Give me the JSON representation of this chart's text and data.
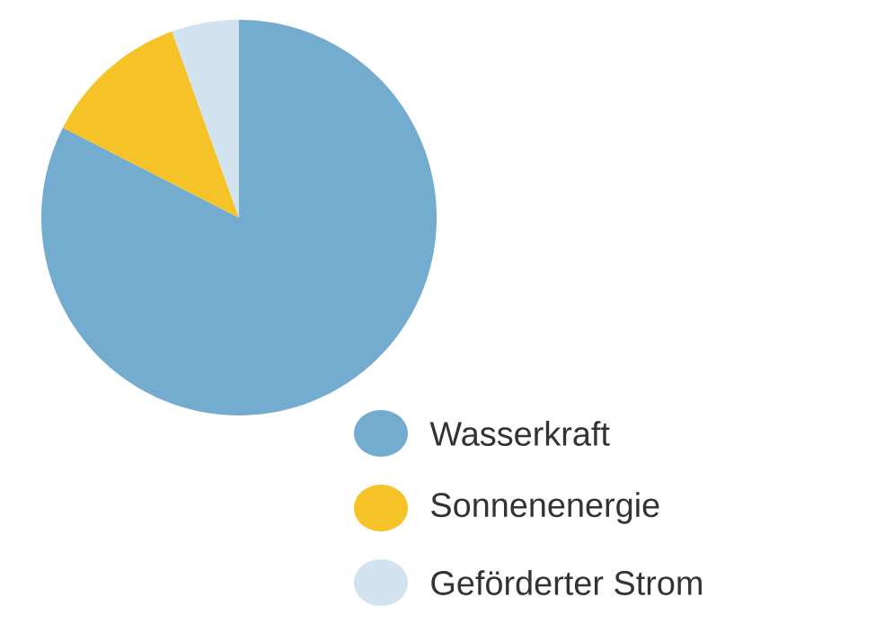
{
  "chart_data": {
    "type": "pie",
    "categories": [
      "Wasserkraft",
      "Sonnenenergie",
      "Geförderter Strom"
    ],
    "values": [
      82.5,
      12,
      5.5
    ],
    "colors": [
      "#74acd0",
      "#f5c328",
      "#d0e3ef"
    ],
    "legend": "bottom right"
  }
}
